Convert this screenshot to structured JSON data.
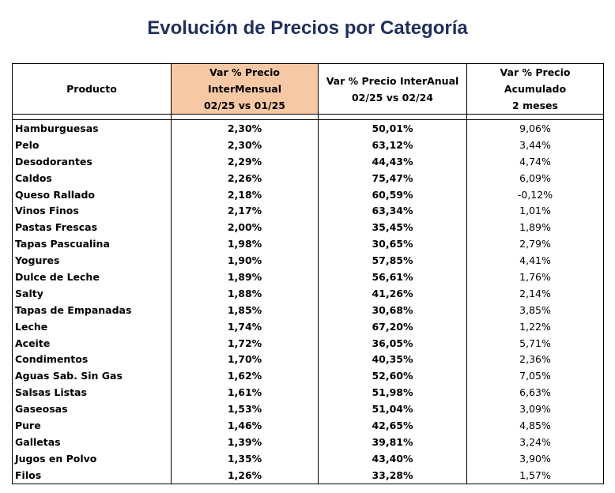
{
  "title": "Evolución de Precios por Categoría",
  "colors": {
    "title": "#1f2e5e",
    "highlight_header": "#f7c8a4",
    "border": "#000000"
  },
  "table": {
    "headers": {
      "producto": "Producto",
      "intermensual_line1": "Var % Precio InterMensual",
      "intermensual_line2": "02/25 vs 01/25",
      "interanual_line1": "Var % Precio InterAnual",
      "interanual_line2": "02/25 vs 02/24",
      "acumulado_line1": "Var % Precio Acumulado",
      "acumulado_line2": "2 meses"
    },
    "rows": [
      {
        "producto": "Hamburguesas",
        "intermensual": "2,30%",
        "interanual": "50,01%",
        "acumulado": "9,06%"
      },
      {
        "producto": "Pelo",
        "intermensual": "2,30%",
        "interanual": "63,12%",
        "acumulado": "3,44%"
      },
      {
        "producto": "Desodorantes",
        "intermensual": "2,29%",
        "interanual": "44,43%",
        "acumulado": "4,74%"
      },
      {
        "producto": "Caldos",
        "intermensual": "2,26%",
        "interanual": "75,47%",
        "acumulado": "6,09%"
      },
      {
        "producto": "Queso Rallado",
        "intermensual": "2,18%",
        "interanual": "60,59%",
        "acumulado": "-0,12%"
      },
      {
        "producto": "Vinos Finos",
        "intermensual": "2,17%",
        "interanual": "63,34%",
        "acumulado": "1,01%"
      },
      {
        "producto": "Pastas Frescas",
        "intermensual": "2,00%",
        "interanual": "35,45%",
        "acumulado": "1,89%"
      },
      {
        "producto": "Tapas Pascualina",
        "intermensual": "1,98%",
        "interanual": "30,65%",
        "acumulado": "2,79%"
      },
      {
        "producto": "Yogures",
        "intermensual": "1,90%",
        "interanual": "57,85%",
        "acumulado": "4,41%"
      },
      {
        "producto": "Dulce de Leche",
        "intermensual": "1,89%",
        "interanual": "56,61%",
        "acumulado": "1,76%"
      },
      {
        "producto": "Salty",
        "intermensual": "1,88%",
        "interanual": "41,26%",
        "acumulado": "2,14%"
      },
      {
        "producto": "Tapas de Empanadas",
        "intermensual": "1,85%",
        "interanual": "30,68%",
        "acumulado": "3,85%"
      },
      {
        "producto": "Leche",
        "intermensual": "1,74%",
        "interanual": "67,20%",
        "acumulado": "1,22%"
      },
      {
        "producto": "Aceite",
        "intermensual": "1,72%",
        "interanual": "36,05%",
        "acumulado": "5,71%"
      },
      {
        "producto": "Condimentos",
        "intermensual": "1,70%",
        "interanual": "40,35%",
        "acumulado": "2,36%"
      },
      {
        "producto": "Aguas Sab. Sin Gas",
        "intermensual": "1,62%",
        "interanual": "52,60%",
        "acumulado": "7,05%"
      },
      {
        "producto": "Salsas Listas",
        "intermensual": "1,61%",
        "interanual": "51,98%",
        "acumulado": "6,63%"
      },
      {
        "producto": "Gaseosas",
        "intermensual": "1,53%",
        "interanual": "51,04%",
        "acumulado": "3,09%"
      },
      {
        "producto": "Pure",
        "intermensual": "1,46%",
        "interanual": "42,65%",
        "acumulado": "4,85%"
      },
      {
        "producto": "Galletas",
        "intermensual": "1,39%",
        "interanual": "39,81%",
        "acumulado": "3,24%"
      },
      {
        "producto": "Jugos en Polvo",
        "intermensual": "1,35%",
        "interanual": "43,40%",
        "acumulado": "3,90%"
      },
      {
        "producto": "Filos",
        "intermensual": "1,26%",
        "interanual": "33,28%",
        "acumulado": "1,57%"
      }
    ]
  }
}
